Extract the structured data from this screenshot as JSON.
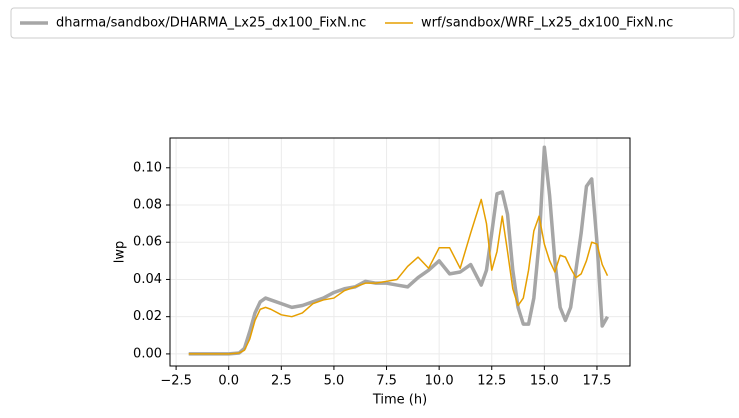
{
  "chart_data": {
    "type": "line",
    "x_label": "Time (h)",
    "y_label": "lwp",
    "x": [
      -1.9,
      -1.5,
      -1,
      -0.5,
      0,
      0.5,
      0.75,
      1,
      1.25,
      1.5,
      1.75,
      2,
      2.5,
      3,
      3.5,
      4,
      4.5,
      5,
      5.5,
      6,
      6.5,
      7,
      7.5,
      8,
      8.5,
      9,
      9.5,
      10,
      10.5,
      11,
      11.5,
      12,
      12.25,
      12.5,
      12.75,
      13,
      13.25,
      13.5,
      13.75,
      14,
      14.25,
      14.5,
      14.75,
      15,
      15.25,
      15.5,
      15.75,
      16,
      16.25,
      16.5,
      16.75,
      17,
      17.25,
      17.5,
      17.75,
      18
    ],
    "series": [
      {
        "name": "dharma/sandbox/DHARMA_Lx25_dx100_FixN.nc",
        "color": "#a6a6a6",
        "width": 3.5,
        "values": [
          0,
          0,
          0,
          0,
          0,
          0.0005,
          0.003,
          0.012,
          0.022,
          0.028,
          0.03,
          0.029,
          0.027,
          0.025,
          0.026,
          0.028,
          0.03,
          0.033,
          0.035,
          0.036,
          0.039,
          0.038,
          0.038,
          0.037,
          0.036,
          0.041,
          0.045,
          0.05,
          0.043,
          0.044,
          0.048,
          0.037,
          0.045,
          0.065,
          0.086,
          0.087,
          0.075,
          0.045,
          0.025,
          0.016,
          0.016,
          0.03,
          0.06,
          0.111,
          0.085,
          0.05,
          0.025,
          0.018,
          0.025,
          0.045,
          0.065,
          0.09,
          0.094,
          0.06,
          0.015,
          0.02
        ]
      },
      {
        "name": "wrf/sandbox/WRF_Lx25_dx100_FixN.nc",
        "color": "#e69f00",
        "width": 1.5,
        "values": [
          0,
          0,
          0,
          0,
          0,
          0.0005,
          0.002,
          0.008,
          0.018,
          0.024,
          0.025,
          0.024,
          0.021,
          0.02,
          0.022,
          0.027,
          0.029,
          0.03,
          0.034,
          0.036,
          0.038,
          0.038,
          0.039,
          0.04,
          0.047,
          0.052,
          0.046,
          0.057,
          0.057,
          0.046,
          0.065,
          0.083,
          0.07,
          0.045,
          0.055,
          0.074,
          0.055,
          0.035,
          0.026,
          0.03,
          0.045,
          0.066,
          0.074,
          0.059,
          0.05,
          0.044,
          0.053,
          0.052,
          0.046,
          0.041,
          0.043,
          0.05,
          0.06,
          0.059,
          0.048,
          0.042
        ]
      }
    ],
    "xlim": [
      -2.79,
      19.07
    ],
    "ylim": [
      -0.0065,
      0.116
    ],
    "xticks": [
      {
        "value": -2.5,
        "label": "−2.5"
      },
      {
        "value": 0,
        "label": "0.0"
      },
      2.5,
      {
        "value": 5,
        "label": "5.0"
      },
      7.5,
      {
        "value": 10,
        "label": "10.0"
      },
      12.5,
      {
        "value": 15,
        "label": "15.0"
      },
      17.5
    ],
    "yticks": [
      {
        "value": 0,
        "label": "0.00"
      },
      {
        "value": 0.02,
        "label": "0.02"
      },
      {
        "value": 0.04,
        "label": "0.04"
      },
      {
        "value": 0.06,
        "label": "0.06"
      },
      {
        "value": 0.08,
        "label": "0.08"
      },
      {
        "value": 0.1,
        "label": "0.10"
      }
    ],
    "grid": true
  }
}
